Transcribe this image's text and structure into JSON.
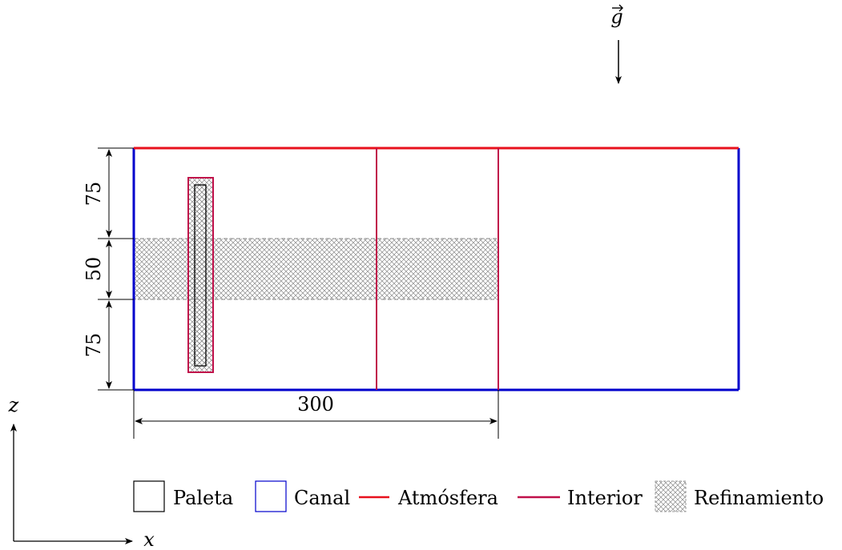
{
  "gravity": {
    "label": "g"
  },
  "dimensions": {
    "top_height": "75",
    "middle_height": "50",
    "bottom_height": "75",
    "length": "300"
  },
  "axes": {
    "vertical": "z",
    "horizontal": "x"
  },
  "legend": {
    "items": [
      {
        "label": "Paleta",
        "kind": "box",
        "color": "#000000"
      },
      {
        "label": "Canal",
        "kind": "box",
        "color": "#0000cc"
      },
      {
        "label": "Atmósfera",
        "kind": "line",
        "color": "#e8111d"
      },
      {
        "label": "Interior",
        "kind": "line",
        "color": "#c0104a"
      },
      {
        "label": "Refinamiento",
        "kind": "hatch",
        "color": "#777777"
      }
    ]
  },
  "colors": {
    "canal": "#0000cc",
    "atmosfera": "#e8111d",
    "interior": "#c0104a",
    "paleta": "#000000",
    "hatch": "#777777"
  }
}
